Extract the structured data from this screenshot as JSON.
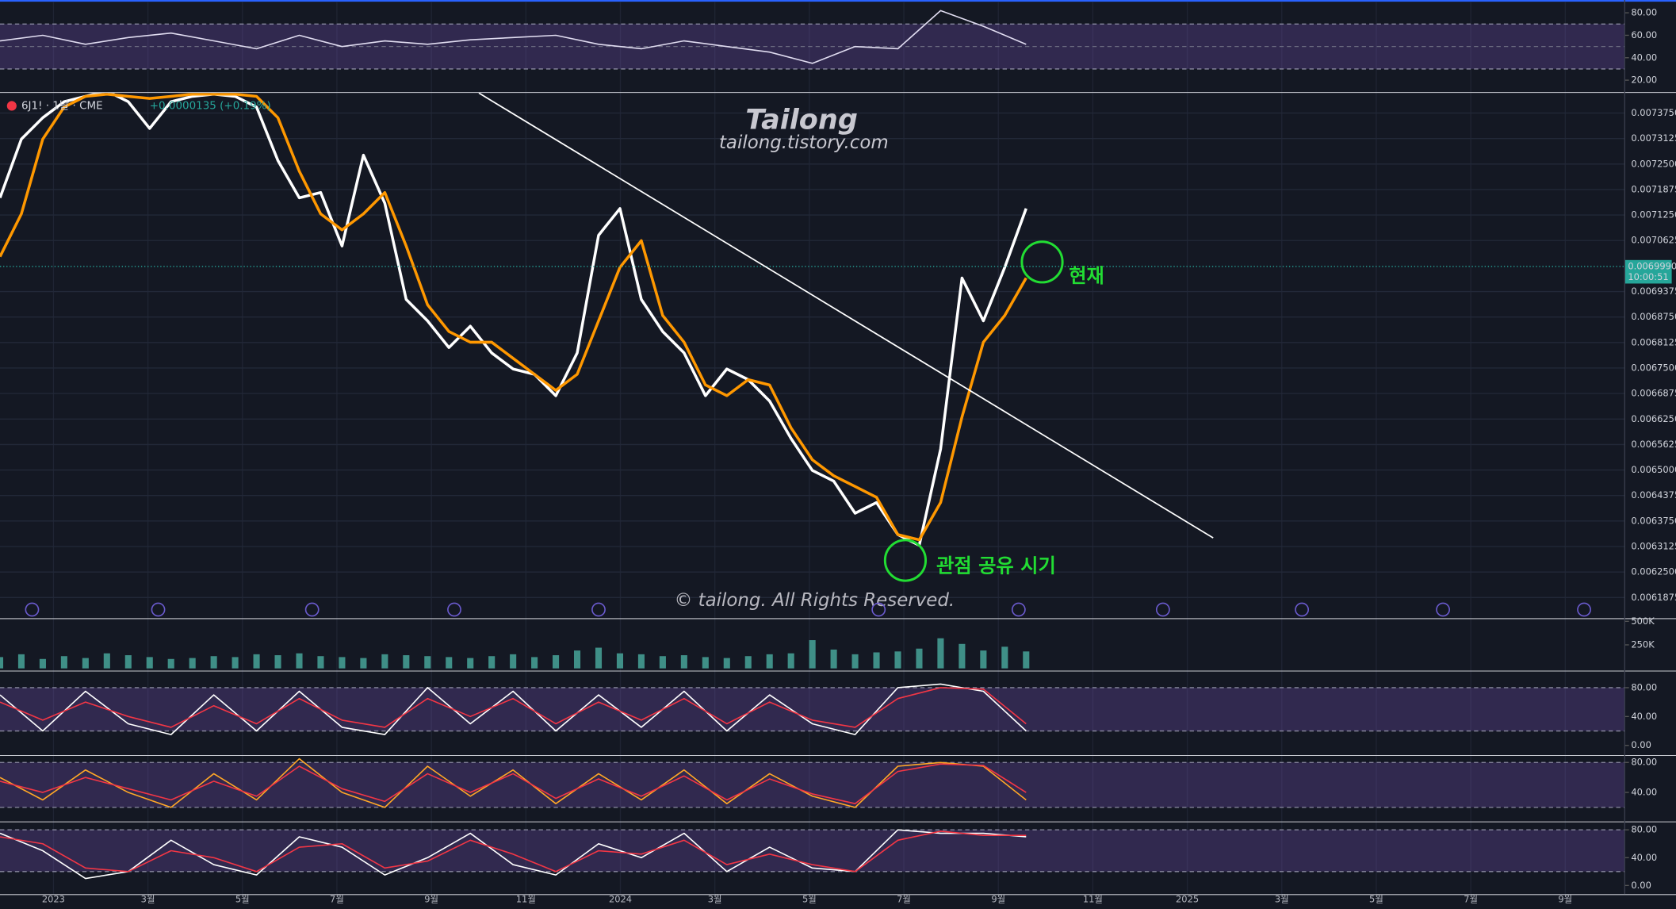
{
  "header": {
    "symbol": "6J1! · 1날 · CME",
    "change": "+0.0000135 (+0.19%)"
  },
  "watermark": {
    "title": "Tailong",
    "site": "tailong.tistory.com",
    "copyright": "© tailong. All Rights Reserved."
  },
  "annotations": {
    "current": "현재",
    "entry": "관점 공유 시기"
  },
  "time_axis": {
    "labels": [
      "2023",
      "3월",
      "5월",
      "7월",
      "9월",
      "11월",
      "2024",
      "3월",
      "5월",
      "7월",
      "9월",
      "11월",
      "2025",
      "3월",
      "5월",
      "7월",
      "9월"
    ]
  },
  "chart_data": [
    {
      "type": "line",
      "grid": true,
      "ylim": [
        0.006137,
        0.007424
      ],
      "yticks": [
        {
          "value": 0.007375,
          "label": "0.0073750"
        },
        {
          "value": 0.0073125,
          "label": "0.0073125"
        },
        {
          "value": 0.00725,
          "label": "0.0072500"
        },
        {
          "value": 0.0071875,
          "label": "0.0071875"
        },
        {
          "value": 0.007125,
          "label": "0.0071250"
        },
        {
          "value": 0.0070625,
          "label": "0.0070625"
        },
        {
          "value": 0.0069375,
          "label": "0.0069375"
        },
        {
          "value": 0.006875,
          "label": "0.0068750"
        },
        {
          "value": 0.0068125,
          "label": "0.0068125"
        },
        {
          "value": 0.00675,
          "label": "0.0067500"
        },
        {
          "value": 0.0066875,
          "label": "0.0066875"
        },
        {
          "value": 0.006625,
          "label": "0.0066250"
        },
        {
          "value": 0.0065625,
          "label": "0.0065625"
        },
        {
          "value": 0.0065,
          "label": "0.0065000"
        },
        {
          "value": 0.0064375,
          "label": "0.0064375"
        },
        {
          "value": 0.006375,
          "label": "0.0063750"
        },
        {
          "value": 0.0063125,
          "label": "0.0063125"
        },
        {
          "value": 0.00625,
          "label": "0.0062500"
        },
        {
          "value": 0.0061875,
          "label": "0.0061875"
        }
      ],
      "last_price": {
        "value": 0.006999,
        "label": "0.0069990"
      },
      "countdown": "10:00:51",
      "series": [
        {
          "color": "#ffffff",
          "values": [
            0.007167,
            0.007311,
            0.0073635,
            0.0074028,
            0.0074159,
            0.007429,
            0.0074028,
            0.0073373,
            0.0074028,
            0.0074159,
            0.0074211,
            0.0074159,
            0.0073897,
            0.0072587,
            0.007167,
            0.0071801,
            0.0070491,
            0.0072718,
            0.0071539,
            0.0069181,
            0.0068657,
            0.0068002,
            0.0068526,
            0.0067871,
            0.0067478,
            0.0067347,
            0.0066823,
            0.0067871,
            0.0070753,
            0.0071408,
            0.0069181,
            0.0068395,
            0.0067871,
            0.0066823,
            0.0067478,
            0.0067216,
            0.0066692,
            0.0065775,
            0.0064989,
            0.0064727,
            0.0063941,
            0.0064203,
            0.0063417,
            0.0063155,
            0.0065513,
            0.0069705,
            0.0068657,
            0.0069967,
            0.0071408
          ]
        },
        {
          "color": "#ff9800",
          "values": [
            0.0070229,
            0.0071277,
            0.007311,
            0.0073897,
            0.0074159,
            0.0074211,
            0.0074159,
            0.0074107,
            0.0074159,
            0.0074211,
            0.0074211,
            0.0074211,
            0.0074159,
            0.0073635,
            0.0072325,
            0.0071277,
            0.0070884,
            0.0071277,
            0.0071801,
            0.0070491,
            0.006905,
            0.0068395,
            0.0068133,
            0.0068133,
            0.006774,
            0.0067347,
            0.0066954,
            0.0067347,
            0.0068657,
            0.0069967,
            0.0070622,
            0.0068788,
            0.0068133,
            0.0067085,
            0.0066823,
            0.0067216,
            0.0067085,
            0.0066037,
            0.0065251,
            0.0064858,
            0.0064596,
            0.0064333,
            0.0063417,
            0.006329,
            0.0064203,
            0.00663,
            0.0068133,
            0.0068788,
            0.0069705
          ]
        }
      ]
    },
    {
      "type": "line",
      "ylim": [
        9.5,
        89.5
      ],
      "yticks": [
        {
          "value": 80,
          "label": "80.00"
        },
        {
          "value": 60,
          "label": "60.00"
        },
        {
          "value": 40,
          "label": "40.00"
        },
        {
          "value": 20,
          "label": "20.00"
        }
      ],
      "band": [
        30,
        70
      ],
      "midline": 50,
      "series": [
        {
          "color": "#e0dcf0",
          "values": [
            55,
            60,
            52,
            58,
            62,
            55,
            48,
            60,
            50,
            55,
            52,
            56,
            58,
            60,
            52,
            48,
            55,
            50,
            45,
            35,
            50,
            48,
            82,
            68,
            52
          ]
        }
      ]
    },
    {
      "type": "bar",
      "ylim": [
        -22700,
        522700
      ],
      "yticks": [
        {
          "value": 500000,
          "label": "500K"
        },
        {
          "value": 250000,
          "label": "250K"
        }
      ],
      "color": "#3f8f87",
      "values": [
        120000,
        150000,
        100000,
        130000,
        110000,
        160000,
        140000,
        120000,
        100000,
        110000,
        130000,
        120000,
        150000,
        140000,
        160000,
        130000,
        120000,
        110000,
        150000,
        140000,
        130000,
        120000,
        110000,
        130000,
        150000,
        120000,
        140000,
        190000,
        220000,
        160000,
        150000,
        130000,
        140000,
        120000,
        110000,
        130000,
        150000,
        160000,
        300000,
        200000,
        150000,
        170000,
        180000,
        210000,
        320000,
        260000,
        190000,
        230000,
        180000
      ]
    },
    {
      "type": "line",
      "ylim": [
        -13.3,
        99.3
      ],
      "yticks": [
        {
          "value": 80,
          "label": "80.00"
        },
        {
          "value": 40,
          "label": "40.00"
        },
        {
          "value": 0,
          "label": "0.00"
        }
      ],
      "band": [
        20,
        80
      ],
      "series": [
        {
          "color": "#ffffff",
          "values": [
            70,
            20,
            75,
            30,
            15,
            70,
            20,
            75,
            25,
            15,
            80,
            30,
            75,
            20,
            70,
            25,
            75,
            20,
            70,
            30,
            15,
            80,
            85,
            75,
            20
          ]
        },
        {
          "color": "#f23645",
          "values": [
            60,
            35,
            60,
            40,
            25,
            55,
            30,
            65,
            35,
            25,
            65,
            40,
            65,
            30,
            60,
            35,
            65,
            30,
            60,
            35,
            25,
            65,
            80,
            78,
            30
          ]
        }
      ]
    },
    {
      "type": "line",
      "ylim": [
        1.4,
        87.1
      ],
      "yticks": [
        {
          "value": 80,
          "label": "80.00"
        },
        {
          "value": 40,
          "label": "40.00"
        }
      ],
      "band": [
        20,
        80
      ],
      "series": [
        {
          "color": "#ffa726",
          "values": [
            60,
            30,
            70,
            40,
            20,
            65,
            30,
            85,
            40,
            20,
            75,
            35,
            70,
            25,
            65,
            30,
            70,
            25,
            65,
            35,
            20,
            75,
            80,
            75,
            30
          ]
        },
        {
          "color": "#f23645",
          "values": [
            55,
            40,
            60,
            45,
            30,
            55,
            35,
            75,
            45,
            28,
            65,
            40,
            65,
            32,
            58,
            35,
            62,
            30,
            58,
            38,
            25,
            68,
            78,
            76,
            40
          ]
        }
      ]
    },
    {
      "type": "line",
      "ylim": [
        -12.3,
        89.2
      ],
      "yticks": [
        {
          "value": 80,
          "label": "80.00"
        },
        {
          "value": 40,
          "label": "40.00"
        },
        {
          "value": 0,
          "label": "0.00"
        }
      ],
      "band": [
        20,
        80
      ],
      "series": [
        {
          "color": "#ffffff",
          "values": [
            75,
            50,
            10,
            20,
            65,
            30,
            15,
            70,
            55,
            15,
            40,
            75,
            30,
            15,
            60,
            40,
            75,
            20,
            55,
            25,
            20,
            80,
            75,
            75,
            70
          ]
        },
        {
          "color": "#f23645",
          "values": [
            70,
            60,
            25,
            20,
            50,
            40,
            20,
            55,
            60,
            25,
            35,
            65,
            45,
            20,
            50,
            45,
            65,
            30,
            45,
            30,
            20,
            65,
            78,
            72,
            72
          ]
        }
      ]
    }
  ]
}
